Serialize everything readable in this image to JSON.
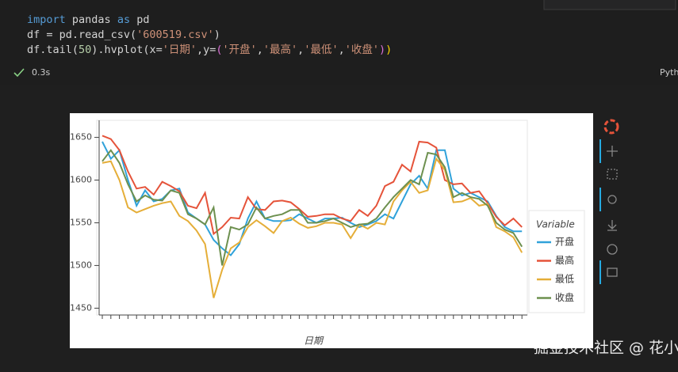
{
  "code": [
    [
      {
        "text": "import",
        "color": "#569cd6"
      },
      {
        "text": " pandas ",
        "color": "#d4d4d4"
      },
      {
        "text": "as",
        "color": "#569cd6"
      },
      {
        "text": " pd",
        "color": "#d4d4d4"
      }
    ],
    [
      {
        "text": "df = pd.read_csv(",
        "color": "#d4d4d4"
      },
      {
        "text": "'600519.csv'",
        "color": "#ce9178"
      },
      {
        "text": ")",
        "color": "#d4d4d4"
      }
    ],
    [
      {
        "text": "df.tail(",
        "color": "#d4d4d4"
      },
      {
        "text": "50",
        "color": "#b5cea8"
      },
      {
        "text": ").hvplot(x=",
        "color": "#d4d4d4"
      },
      {
        "text": "'日期'",
        "color": "#ce9178"
      },
      {
        "text": ",y=",
        "color": "#d4d4d4"
      },
      {
        "text": "(",
        "color": "#da70d6"
      },
      {
        "text": "'开盘'",
        "color": "#ce9178"
      },
      {
        "text": ",",
        "color": "#d4d4d4"
      },
      {
        "text": "'最高'",
        "color": "#ce9178"
      },
      {
        "text": ",",
        "color": "#d4d4d4"
      },
      {
        "text": "'最低'",
        "color": "#ce9178"
      },
      {
        "text": ",",
        "color": "#d4d4d4"
      },
      {
        "text": "'收盘'",
        "color": "#ce9178"
      },
      {
        "text": ")",
        "color": "#da70d6"
      },
      {
        "text": ")",
        "color": "#ffd700"
      }
    ]
  ],
  "status": {
    "time": "0.3s",
    "language": "Pyth"
  },
  "watermark": "掘金技术社区 @ 花小姐的春天",
  "chart_data": {
    "type": "line",
    "x_label": "日期",
    "legend_title": "Variable",
    "legend": "right",
    "categories": [
      null,
      null,
      null,
      null,
      null,
      null,
      null,
      null,
      null,
      null,
      null,
      null,
      null,
      null,
      null,
      null,
      null,
      null,
      null,
      null,
      null,
      null,
      null,
      null,
      null,
      null,
      null,
      null,
      null,
      null,
      null,
      null,
      null,
      null,
      null,
      null,
      null,
      null,
      null,
      null,
      null,
      null,
      null,
      null,
      null,
      null,
      null,
      null,
      null,
      null
    ],
    "ylim": [
      1442,
      1670
    ],
    "yticks": [
      1450,
      1500,
      1550,
      1600,
      1650
    ],
    "series": [
      {
        "name": "开盘",
        "color": "#30a2da",
        "values": [
          1645,
          1625,
          1635,
          1600,
          1570,
          1588,
          1575,
          1578,
          1588,
          1590,
          1562,
          1555,
          1548,
          1530,
          1520,
          1512,
          1525,
          1555,
          1575,
          1555,
          1552,
          1552,
          1553,
          1560,
          1555,
          1550,
          1555,
          1555,
          1556,
          1550,
          1545,
          1548,
          1552,
          1560,
          1555,
          1575,
          1595,
          1605,
          1590,
          1635,
          1635,
          1590,
          1582,
          1585,
          1580,
          1575,
          1558,
          1545,
          1540,
          1540
        ]
      },
      {
        "name": "最高",
        "color": "#e5533a",
        "values": [
          1652,
          1648,
          1635,
          1610,
          1590,
          1592,
          1583,
          1598,
          1593,
          1587,
          1570,
          1567,
          1585,
          1537,
          1545,
          1556,
          1555,
          1580,
          1566,
          1565,
          1575,
          1576,
          1574,
          1566,
          1557,
          1558,
          1560,
          1560,
          1555,
          1552,
          1565,
          1558,
          1570,
          1593,
          1598,
          1618,
          1610,
          1645,
          1644,
          1638,
          1600,
          1595,
          1596,
          1585,
          1587,
          1573,
          1557,
          1547,
          1555,
          1545
        ]
      },
      {
        "name": "最低",
        "color": "#e5ae38",
        "values": [
          1620,
          1622,
          1600,
          1568,
          1562,
          1566,
          1570,
          1573,
          1575,
          1558,
          1552,
          1541,
          1525,
          1462,
          1495,
          1520,
          1527,
          1545,
          1553,
          1546,
          1538,
          1552,
          1556,
          1549,
          1544,
          1546,
          1550,
          1550,
          1548,
          1532,
          1548,
          1543,
          1550,
          1548,
          1575,
          1588,
          1598,
          1585,
          1588,
          1625,
          1612,
          1574,
          1575,
          1579,
          1570,
          1572,
          1545,
          1540,
          1533,
          1515
        ]
      },
      {
        "name": "收盘",
        "color": "#6d904f",
        "values": [
          1622,
          1635,
          1620,
          1595,
          1575,
          1582,
          1577,
          1576,
          1588,
          1585,
          1560,
          1555,
          1548,
          1568,
          1500,
          1545,
          1542,
          1548,
          1568,
          1555,
          1558,
          1560,
          1565,
          1565,
          1550,
          1550,
          1552,
          1555,
          1550,
          1545,
          1548,
          1549,
          1555,
          1568,
          1580,
          1590,
          1600,
          1595,
          1632,
          1630,
          1615,
          1580,
          1585,
          1580,
          1578,
          1570,
          1550,
          1542,
          1538,
          1522
        ]
      }
    ]
  }
}
